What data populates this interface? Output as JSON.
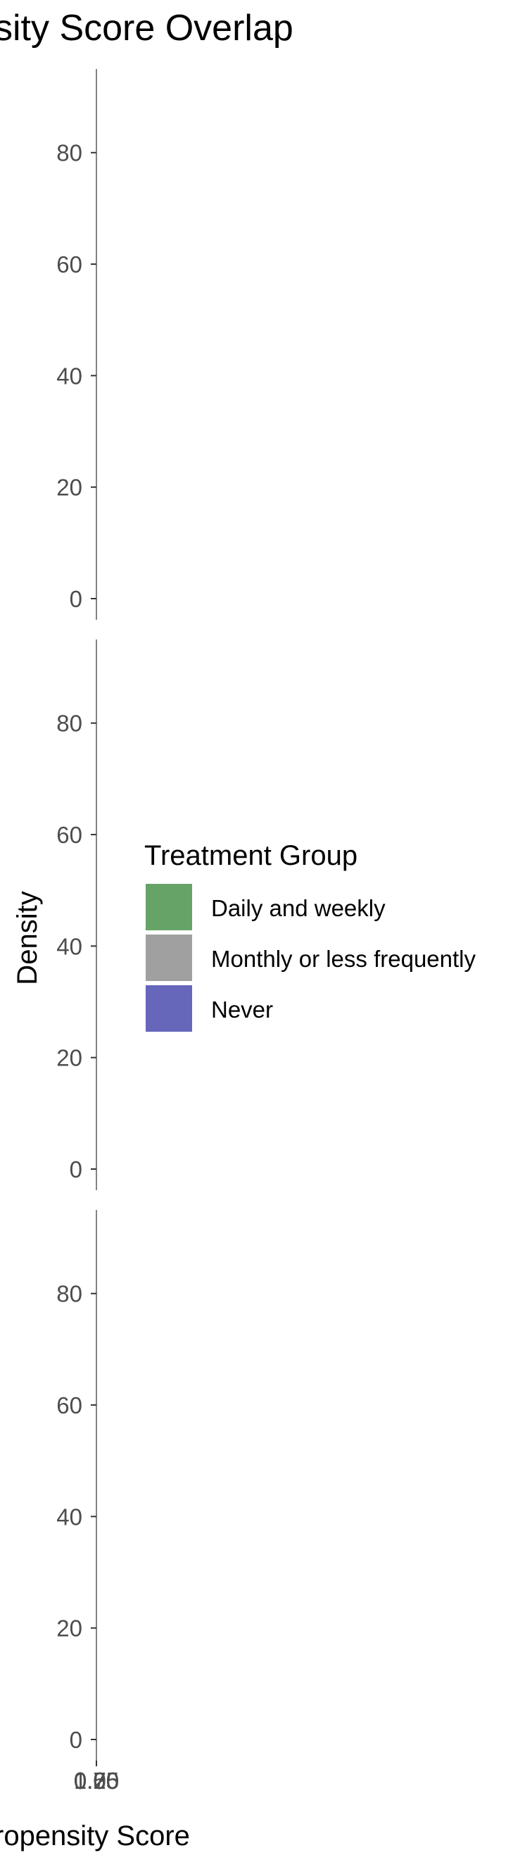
{
  "chart_data": {
    "type": "area",
    "title": "sity Score Overlap",
    "xlabel": "ropensity Score",
    "ylabel": "Density",
    "panels": [
      {
        "ylim": [
          0,
          95
        ],
        "yticks": [
          0,
          20,
          40,
          60,
          80
        ]
      },
      {
        "ylim": [
          0,
          95
        ],
        "yticks": [
          0,
          20,
          40,
          60,
          80
        ]
      },
      {
        "ylim": [
          0,
          95
        ],
        "yticks": [
          0,
          20,
          40,
          60,
          80
        ]
      }
    ],
    "x_tick_labels": [
      "0.00",
      "0.25",
      "0.50",
      "0.75",
      "1.00"
    ],
    "legend": {
      "title": "Treatment Group",
      "position": "right",
      "entries": [
        {
          "label": "Daily and weekly",
          "color": "#66a366"
        },
        {
          "label": "Monthly or less frequently",
          "color": "#a0a0a0"
        },
        {
          "label": "Never",
          "color": "#6666bb"
        }
      ]
    },
    "series": [
      {
        "name": "Daily and weekly",
        "values": []
      },
      {
        "name": "Monthly or less frequently",
        "values": []
      },
      {
        "name": "Never",
        "values": []
      }
    ],
    "grid": false
  }
}
